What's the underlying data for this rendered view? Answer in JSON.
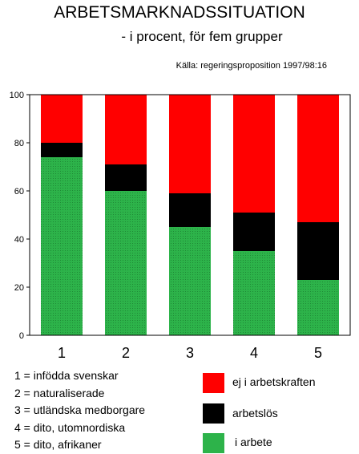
{
  "header": {
    "title": "ARBETSMARKNADSSITUATION",
    "subtitle": "- i procent, för fem grupper",
    "source": "Källa: regeringsproposition 1997/98:16"
  },
  "group_key": [
    "1 = infödda svenskar",
    "2 = naturaliserade",
    "3 = utländska medborgare",
    "4 = dito, utomnordiska",
    "5 = dito, afrikaner"
  ],
  "colors": {
    "employed": "#2db34a",
    "unemployed": "#000000",
    "outside": "#ff0000"
  },
  "chart_data": {
    "type": "bar",
    "stacked": true,
    "categories": [
      "1",
      "2",
      "3",
      "4",
      "5"
    ],
    "series": [
      {
        "name": "i arbete",
        "values": [
          74,
          60,
          45,
          35,
          23
        ]
      },
      {
        "name": "arbetslös",
        "values": [
          6,
          11,
          14,
          16,
          24
        ]
      },
      {
        "name": "ej i arbetskraften",
        "values": [
          20,
          29,
          41,
          49,
          53
        ]
      }
    ],
    "ylim": [
      0,
      100
    ],
    "yticks": [
      0,
      20,
      40,
      60,
      80,
      100
    ],
    "legend_position": "bottom-right"
  }
}
